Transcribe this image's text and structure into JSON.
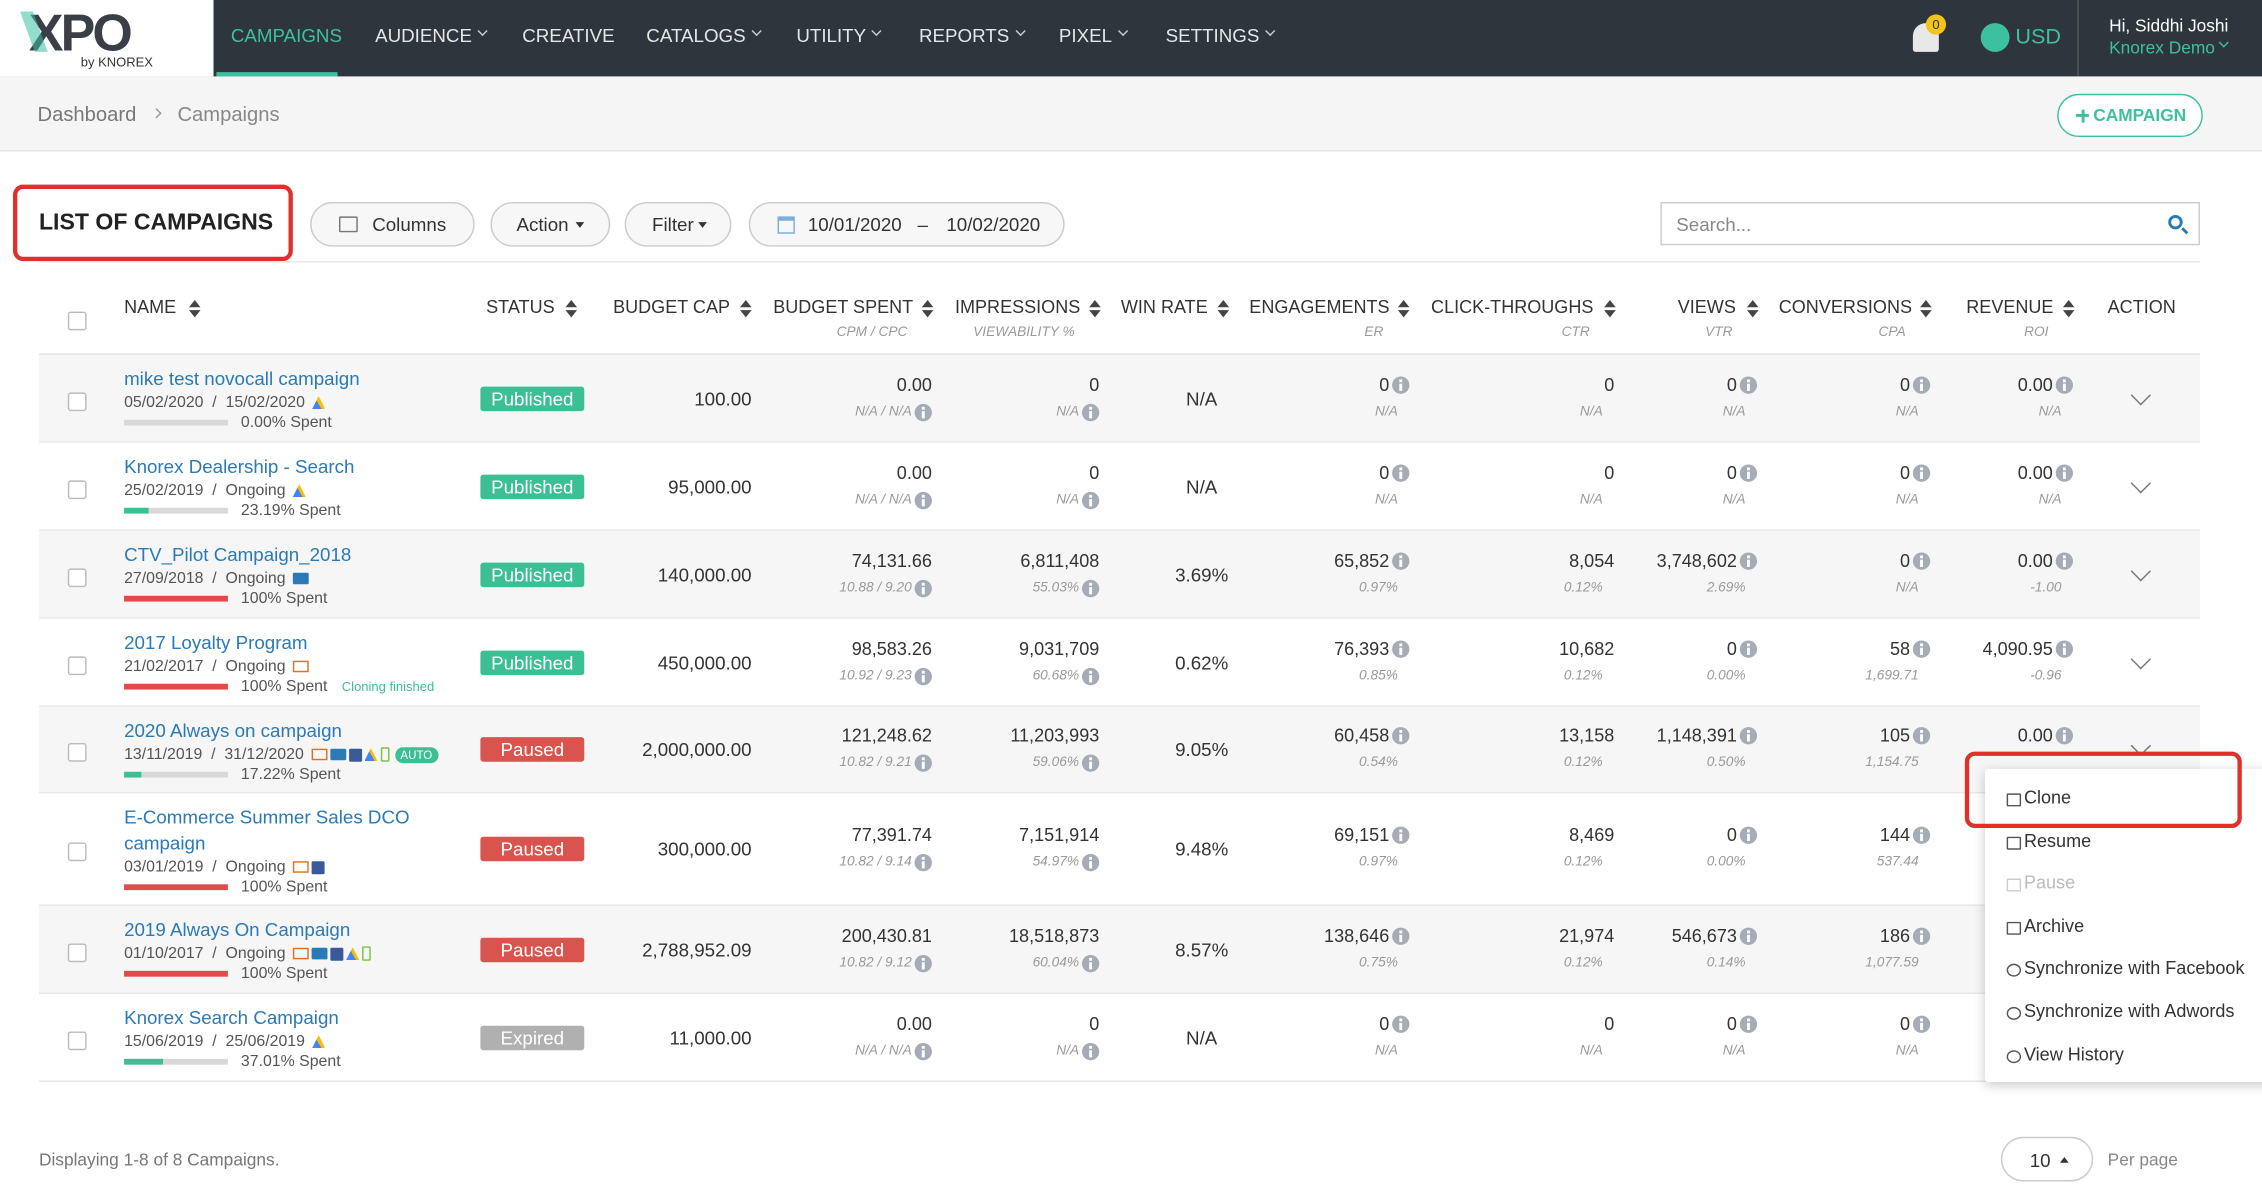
{
  "nav": {
    "logo": "XPO",
    "logo_sub": "by KNOREX",
    "items": [
      "CAMPAIGNS",
      "AUDIENCE",
      "CREATIVE",
      "CATALOGS",
      "UTILITY",
      "REPORTS",
      "PIXEL",
      "SETTINGS"
    ],
    "notifications": "0",
    "currency": "USD",
    "greeting": "Hi, Siddhi Joshi",
    "account": "Knorex Demo"
  },
  "breadcrumb": [
    "Dashboard",
    "Campaigns"
  ],
  "add_button": "CAMPAIGN",
  "toolbar": {
    "title": "LIST OF CAMPAIGNS",
    "columns": "Columns",
    "action": "Action",
    "filter": "Filter",
    "date_from": "10/01/2020",
    "date_sep": "–",
    "date_to": "10/02/2020",
    "search_placeholder": "Search..."
  },
  "table": {
    "headers": [
      {
        "label": "NAME"
      },
      {
        "label": "STATUS"
      },
      {
        "label": "BUDGET CAP"
      },
      {
        "label": "BUDGET SPENT",
        "sub": "CPM / CPC"
      },
      {
        "label": "IMPRESSIONS",
        "sub": "VIEWABILITY %"
      },
      {
        "label": "WIN RATE"
      },
      {
        "label": "ENGAGEMENTS",
        "sub": "ER"
      },
      {
        "label": "CLICK-THROUGHS",
        "sub": "CTR"
      },
      {
        "label": "VIEWS",
        "sub": "VTR"
      },
      {
        "label": "CONVERSIONS",
        "sub": "CPA"
      },
      {
        "label": "REVENUE",
        "sub": "ROI"
      },
      {
        "label": "ACTION"
      }
    ],
    "rows": [
      {
        "name": "mike test novocall campaign",
        "dates": "05/02/2020  /  15/02/2020",
        "spent_pct": 0,
        "spent_label": "0.00% Spent",
        "status": "Published",
        "budget_cap": "100.00",
        "budget_spent": "0.00",
        "budget_spent_sub": "N/A / N/A",
        "impressions": "0",
        "impressions_sub": "N/A",
        "win_rate": "N/A",
        "engagements": "0",
        "engagements_sub": "N/A",
        "clicks": "0",
        "clicks_sub": "N/A",
        "views": "0",
        "views_sub": "N/A",
        "conversions": "0",
        "conversions_sub": "N/A",
        "revenue": "0.00",
        "revenue_sub": "N/A"
      },
      {
        "name": "Knorex Dealership - Search",
        "dates": "25/02/2019  /  Ongoing",
        "spent_pct": 23.19,
        "spent_label": "23.19% Spent",
        "status": "Published",
        "budget_cap": "95,000.00",
        "budget_spent": "0.00",
        "budget_spent_sub": "N/A / N/A",
        "impressions": "0",
        "impressions_sub": "N/A",
        "win_rate": "N/A",
        "engagements": "0",
        "engagements_sub": "N/A",
        "clicks": "0",
        "clicks_sub": "N/A",
        "views": "0",
        "views_sub": "N/A",
        "conversions": "0",
        "conversions_sub": "N/A",
        "revenue": "0.00",
        "revenue_sub": "N/A"
      },
      {
        "name": "CTV_Pilot Campaign_2018",
        "dates": "27/09/2018  /  Ongoing",
        "spent_pct": 100,
        "spent_label": "100% Spent",
        "status": "Published",
        "budget_cap": "140,000.00",
        "budget_spent": "74,131.66",
        "budget_spent_sub": "10.88 / 9.20",
        "impressions": "6,811,408",
        "impressions_sub": "55.03%",
        "win_rate": "3.69%",
        "engagements": "65,852",
        "engagements_sub": "0.97%",
        "clicks": "8,054",
        "clicks_sub": "0.12%",
        "views": "3,748,602",
        "views_sub": "2.69%",
        "conversions": "0",
        "conversions_sub": "N/A",
        "revenue": "0.00",
        "revenue_sub": "-1.00"
      },
      {
        "name": "2017 Loyalty Program",
        "dates": "21/02/2017  /  Ongoing",
        "spent_pct": 100,
        "spent_label": "100% Spent",
        "note": "Cloning finished",
        "status": "Published",
        "budget_cap": "450,000.00",
        "budget_spent": "98,583.26",
        "budget_spent_sub": "10.92 / 9.23",
        "impressions": "9,031,709",
        "impressions_sub": "60.68%",
        "win_rate": "0.62%",
        "engagements": "76,393",
        "engagements_sub": "0.85%",
        "clicks": "10,682",
        "clicks_sub": "0.12%",
        "views": "0",
        "views_sub": "0.00%",
        "conversions": "58",
        "conversions_sub": "1,699.71",
        "revenue": "4,090.95",
        "revenue_sub": "-0.96"
      },
      {
        "name": "2020 Always on campaign",
        "dates": "13/11/2019  /  31/12/2020",
        "spent_pct": 17.22,
        "spent_label": "17.22% Spent",
        "badge": "AUTO",
        "status": "Paused",
        "budget_cap": "2,000,000.00",
        "budget_spent": "121,248.62",
        "budget_spent_sub": "10.82 / 9.21",
        "impressions": "11,203,993",
        "impressions_sub": "59.06%",
        "win_rate": "9.05%",
        "engagements": "60,458",
        "engagements_sub": "0.54%",
        "clicks": "13,158",
        "clicks_sub": "0.12%",
        "views": "1,148,391",
        "views_sub": "0.50%",
        "conversions": "105",
        "conversions_sub": "1,154.75",
        "revenue": "0.00"
      },
      {
        "name": "E-Commerce Summer Sales DCO campaign",
        "dates": "03/01/2019  /  Ongoing",
        "spent_pct": 100,
        "spent_label": "100% Spent",
        "status": "Paused",
        "budget_cap": "300,000.00",
        "budget_spent": "77,391.74",
        "budget_spent_sub": "10.82 / 9.14",
        "impressions": "7,151,914",
        "impressions_sub": "54.97%",
        "win_rate": "9.48%",
        "engagements": "69,151",
        "engagements_sub": "0.97%",
        "clicks": "8,469",
        "clicks_sub": "0.12%",
        "views": "0",
        "views_sub": "0.00%",
        "conversions": "144",
        "conversions_sub": "537.44"
      },
      {
        "name": "2019 Always On Campaign",
        "dates": "01/10/2017  /  Ongoing",
        "spent_pct": 100,
        "spent_label": "100% Spent",
        "status": "Paused",
        "budget_cap": "2,788,952.09",
        "budget_spent": "200,430.81",
        "budget_spent_sub": "10.82 / 9.12",
        "impressions": "18,518,873",
        "impressions_sub": "60.04%",
        "win_rate": "8.57%",
        "engagements": "138,646",
        "engagements_sub": "0.75%",
        "clicks": "21,974",
        "clicks_sub": "0.12%",
        "views": "546,673",
        "views_sub": "0.14%",
        "conversions": "186",
        "conversions_sub": "1,077.59"
      },
      {
        "name": "Knorex Search Campaign",
        "dates": "15/06/2019  /  25/06/2019",
        "spent_pct": 37.01,
        "spent_label": "37.01% Spent",
        "status": "Expired",
        "budget_cap": "11,000.00",
        "budget_spent": "0.00",
        "budget_spent_sub": "N/A / N/A",
        "impressions": "0",
        "impressions_sub": "N/A",
        "win_rate": "N/A",
        "engagements": "0",
        "engagements_sub": "N/A",
        "clicks": "0",
        "clicks_sub": "N/A",
        "views": "0",
        "views_sub": "N/A",
        "conversions": "0",
        "conversions_sub": "N/A"
      }
    ]
  },
  "menu": {
    "items": [
      {
        "label": "Clone"
      },
      {
        "label": "Resume"
      },
      {
        "label": "Pause",
        "disabled": true
      },
      {
        "label": "Archive"
      },
      {
        "label": "Synchronize with Facebook"
      },
      {
        "label": "Synchronize with Adwords"
      },
      {
        "label": "View History"
      }
    ]
  },
  "footer": {
    "summary": "Displaying 1-8 of 8 Campaigns.",
    "per_page_value": "10",
    "per_page_label": "Per page"
  }
}
